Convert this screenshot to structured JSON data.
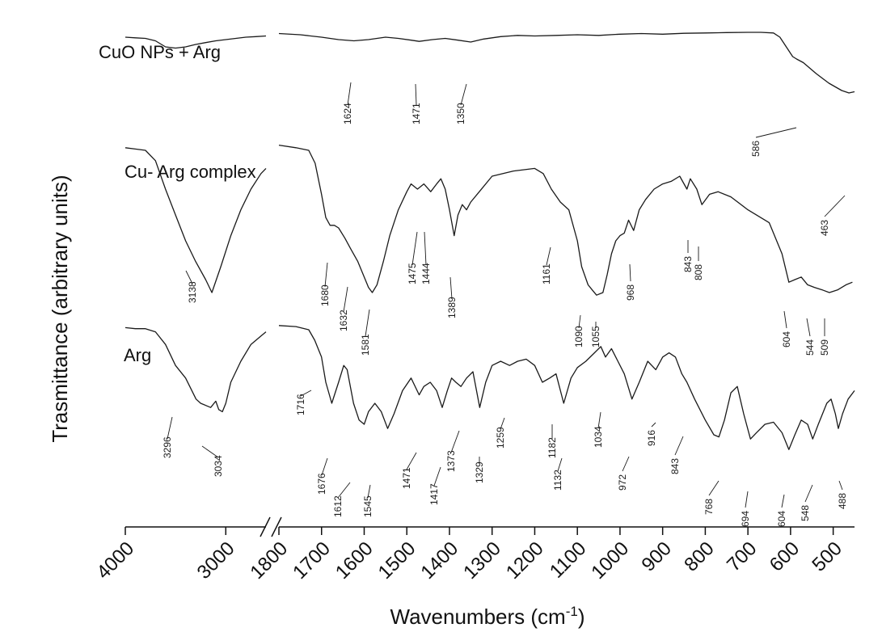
{
  "chart_data": {
    "type": "line",
    "xlabel": {
      "base": "Wavenumbers (cm",
      "sup": "-1",
      "tail": ")"
    },
    "ylabel": "Trasmittance (arbitrary units)",
    "axis_break": {
      "between": [
        3500,
        1800
      ]
    },
    "x_ticks": [
      4000,
      3000,
      1800,
      1700,
      1600,
      1500,
      1400,
      1300,
      1200,
      1100,
      1000,
      900,
      800,
      700,
      600,
      500
    ],
    "grid": false,
    "series": [
      {
        "name": "CuO NPs + Arg",
        "points": [
          [
            4000,
            0.96
          ],
          [
            3900,
            0.955
          ],
          [
            3800,
            0.95
          ],
          [
            3700,
            0.93
          ],
          [
            3600,
            0.88
          ],
          [
            3500,
            0.87
          ],
          [
            3400,
            0.88
          ],
          [
            3300,
            0.9
          ],
          [
            3200,
            0.915
          ],
          [
            3100,
            0.93
          ],
          [
            3000,
            0.94
          ],
          [
            2900,
            0.95
          ],
          [
            2800,
            0.96
          ],
          [
            2700,
            0.965
          ],
          [
            2600,
            0.97
          ],
          [
            1800,
            0.99
          ],
          [
            1750,
            0.98
          ],
          [
            1700,
            0.96
          ],
          [
            1660,
            0.94
          ],
          [
            1624,
            0.93
          ],
          [
            1590,
            0.94
          ],
          [
            1550,
            0.96
          ],
          [
            1520,
            0.95
          ],
          [
            1490,
            0.935
          ],
          [
            1471,
            0.925
          ],
          [
            1440,
            0.94
          ],
          [
            1410,
            0.95
          ],
          [
            1380,
            0.935
          ],
          [
            1350,
            0.92
          ],
          [
            1320,
            0.945
          ],
          [
            1280,
            0.965
          ],
          [
            1240,
            0.975
          ],
          [
            1200,
            0.97
          ],
          [
            1150,
            0.975
          ],
          [
            1100,
            0.98
          ],
          [
            1050,
            0.975
          ],
          [
            1000,
            0.985
          ],
          [
            950,
            0.99
          ],
          [
            900,
            0.985
          ],
          [
            850,
            0.992
          ],
          [
            800,
            0.995
          ],
          [
            750,
            0.998
          ],
          [
            700,
            1.0
          ],
          [
            670,
            1.0
          ],
          [
            640,
            0.995
          ],
          [
            625,
            0.96
          ],
          [
            610,
            0.88
          ],
          [
            595,
            0.8
          ],
          [
            586,
            0.78
          ],
          [
            570,
            0.75
          ],
          [
            540,
            0.66
          ],
          [
            510,
            0.58
          ],
          [
            480,
            0.52
          ],
          [
            463,
            0.5
          ],
          [
            450,
            0.51
          ]
        ]
      },
      {
        "name": "Cu- Arg complex",
        "points": [
          [
            4000,
            0.96
          ],
          [
            3900,
            0.955
          ],
          [
            3800,
            0.95
          ],
          [
            3700,
            0.91
          ],
          [
            3600,
            0.8
          ],
          [
            3500,
            0.7
          ],
          [
            3400,
            0.6
          ],
          [
            3300,
            0.52
          ],
          [
            3200,
            0.45
          ],
          [
            3138,
            0.4
          ],
          [
            3050,
            0.5
          ],
          [
            2950,
            0.62
          ],
          [
            2850,
            0.72
          ],
          [
            2750,
            0.8
          ],
          [
            2650,
            0.86
          ],
          [
            2600,
            0.88
          ],
          [
            1800,
            0.97
          ],
          [
            1760,
            0.96
          ],
          [
            1730,
            0.95
          ],
          [
            1715,
            0.9
          ],
          [
            1700,
            0.78
          ],
          [
            1690,
            0.69
          ],
          [
            1680,
            0.66
          ],
          [
            1670,
            0.66
          ],
          [
            1660,
            0.65
          ],
          [
            1645,
            0.61
          ],
          [
            1632,
            0.57
          ],
          [
            1615,
            0.52
          ],
          [
            1600,
            0.46
          ],
          [
            1590,
            0.42
          ],
          [
            1581,
            0.4
          ],
          [
            1570,
            0.43
          ],
          [
            1555,
            0.52
          ],
          [
            1540,
            0.62
          ],
          [
            1520,
            0.72
          ],
          [
            1500,
            0.79
          ],
          [
            1490,
            0.82
          ],
          [
            1475,
            0.8
          ],
          [
            1460,
            0.82
          ],
          [
            1444,
            0.79
          ],
          [
            1430,
            0.82
          ],
          [
            1420,
            0.84
          ],
          [
            1410,
            0.8
          ],
          [
            1400,
            0.72
          ],
          [
            1389,
            0.62
          ],
          [
            1380,
            0.7
          ],
          [
            1370,
            0.74
          ],
          [
            1360,
            0.72
          ],
          [
            1350,
            0.75
          ],
          [
            1330,
            0.79
          ],
          [
            1300,
            0.85
          ],
          [
            1250,
            0.87
          ],
          [
            1200,
            0.88
          ],
          [
            1180,
            0.86
          ],
          [
            1161,
            0.8
          ],
          [
            1140,
            0.75
          ],
          [
            1120,
            0.72
          ],
          [
            1100,
            0.6
          ],
          [
            1090,
            0.5
          ],
          [
            1075,
            0.43
          ],
          [
            1065,
            0.41
          ],
          [
            1055,
            0.39
          ],
          [
            1040,
            0.4
          ],
          [
            1030,
            0.47
          ],
          [
            1020,
            0.55
          ],
          [
            1010,
            0.6
          ],
          [
            1000,
            0.62
          ],
          [
            990,
            0.63
          ],
          [
            980,
            0.68
          ],
          [
            968,
            0.64
          ],
          [
            955,
            0.72
          ],
          [
            940,
            0.76
          ],
          [
            920,
            0.8
          ],
          [
            900,
            0.82
          ],
          [
            880,
            0.83
          ],
          [
            860,
            0.85
          ],
          [
            843,
            0.8
          ],
          [
            835,
            0.84
          ],
          [
            820,
            0.8
          ],
          [
            808,
            0.74
          ],
          [
            790,
            0.78
          ],
          [
            770,
            0.79
          ],
          [
            740,
            0.77
          ],
          [
            700,
            0.72
          ],
          [
            650,
            0.67
          ],
          [
            620,
            0.55
          ],
          [
            604,
            0.44
          ],
          [
            590,
            0.45
          ],
          [
            575,
            0.46
          ],
          [
            560,
            0.43
          ],
          [
            544,
            0.42
          ],
          [
            525,
            0.41
          ],
          [
            509,
            0.4
          ],
          [
            490,
            0.41
          ],
          [
            470,
            0.43
          ],
          [
            455,
            0.44
          ]
        ]
      },
      {
        "name": "Arg",
        "points": [
          [
            4000,
            0.96
          ],
          [
            3900,
            0.955
          ],
          [
            3800,
            0.955
          ],
          [
            3700,
            0.94
          ],
          [
            3600,
            0.88
          ],
          [
            3500,
            0.78
          ],
          [
            3400,
            0.72
          ],
          [
            3296,
            0.62
          ],
          [
            3250,
            0.6
          ],
          [
            3150,
            0.58
          ],
          [
            3100,
            0.61
          ],
          [
            3070,
            0.57
          ],
          [
            3034,
            0.56
          ],
          [
            3000,
            0.6
          ],
          [
            2950,
            0.7
          ],
          [
            2850,
            0.8
          ],
          [
            2750,
            0.88
          ],
          [
            2650,
            0.92
          ],
          [
            2600,
            0.94
          ],
          [
            1800,
            0.97
          ],
          [
            1760,
            0.965
          ],
          [
            1730,
            0.95
          ],
          [
            1716,
            0.9
          ],
          [
            1700,
            0.82
          ],
          [
            1690,
            0.7
          ],
          [
            1676,
            0.6
          ],
          [
            1660,
            0.7
          ],
          [
            1648,
            0.78
          ],
          [
            1640,
            0.76
          ],
          [
            1625,
            0.6
          ],
          [
            1612,
            0.52
          ],
          [
            1600,
            0.5
          ],
          [
            1590,
            0.56
          ],
          [
            1575,
            0.6
          ],
          [
            1560,
            0.56
          ],
          [
            1545,
            0.48
          ],
          [
            1530,
            0.55
          ],
          [
            1510,
            0.66
          ],
          [
            1490,
            0.72
          ],
          [
            1471,
            0.64
          ],
          [
            1460,
            0.68
          ],
          [
            1445,
            0.7
          ],
          [
            1430,
            0.66
          ],
          [
            1417,
            0.58
          ],
          [
            1405,
            0.66
          ],
          [
            1395,
            0.72
          ],
          [
            1385,
            0.7
          ],
          [
            1373,
            0.68
          ],
          [
            1360,
            0.72
          ],
          [
            1345,
            0.75
          ],
          [
            1329,
            0.58
          ],
          [
            1315,
            0.7
          ],
          [
            1300,
            0.78
          ],
          [
            1280,
            0.8
          ],
          [
            1259,
            0.78
          ],
          [
            1240,
            0.8
          ],
          [
            1220,
            0.81
          ],
          [
            1200,
            0.78
          ],
          [
            1182,
            0.7
          ],
          [
            1165,
            0.72
          ],
          [
            1150,
            0.74
          ],
          [
            1132,
            0.6
          ],
          [
            1115,
            0.72
          ],
          [
            1100,
            0.77
          ],
          [
            1080,
            0.8
          ],
          [
            1060,
            0.84
          ],
          [
            1045,
            0.87
          ],
          [
            1034,
            0.82
          ],
          [
            1020,
            0.86
          ],
          [
            1005,
            0.8
          ],
          [
            990,
            0.74
          ],
          [
            972,
            0.62
          ],
          [
            955,
            0.7
          ],
          [
            935,
            0.8
          ],
          [
            916,
            0.76
          ],
          [
            900,
            0.82
          ],
          [
            885,
            0.84
          ],
          [
            870,
            0.82
          ],
          [
            855,
            0.74
          ],
          [
            843,
            0.7
          ],
          [
            825,
            0.62
          ],
          [
            800,
            0.52
          ],
          [
            780,
            0.45
          ],
          [
            768,
            0.44
          ],
          [
            755,
            0.52
          ],
          [
            740,
            0.65
          ],
          [
            725,
            0.68
          ],
          [
            710,
            0.55
          ],
          [
            694,
            0.43
          ],
          [
            680,
            0.46
          ],
          [
            660,
            0.5
          ],
          [
            640,
            0.51
          ],
          [
            620,
            0.46
          ],
          [
            604,
            0.38
          ],
          [
            590,
            0.45
          ],
          [
            575,
            0.52
          ],
          [
            560,
            0.5
          ],
          [
            548,
            0.43
          ],
          [
            535,
            0.5
          ],
          [
            515,
            0.6
          ],
          [
            505,
            0.62
          ],
          [
            495,
            0.55
          ],
          [
            488,
            0.48
          ],
          [
            478,
            0.55
          ],
          [
            465,
            0.62
          ],
          [
            450,
            0.66
          ]
        ]
      }
    ],
    "annotations": [
      {
        "series": 0,
        "labels": [
          "1624",
          "1471",
          "1350",
          "586",
          "463"
        ]
      },
      {
        "series": 1,
        "labels": [
          "3138",
          "1680",
          "1632",
          "1581",
          "1475",
          "1444",
          "1389",
          "1161",
          "1090",
          "1055",
          "968",
          "843",
          "808",
          "604",
          "544",
          "509"
        ]
      },
      {
        "series": 2,
        "labels": [
          "3296",
          "3034",
          "1716",
          "1676",
          "1612",
          "1545",
          "1471",
          "1417",
          "1373",
          "1329",
          "1259",
          "1182",
          "1132",
          "1034",
          "972",
          "916",
          "843",
          "768",
          "694",
          "604",
          "548",
          "488"
        ]
      }
    ]
  }
}
